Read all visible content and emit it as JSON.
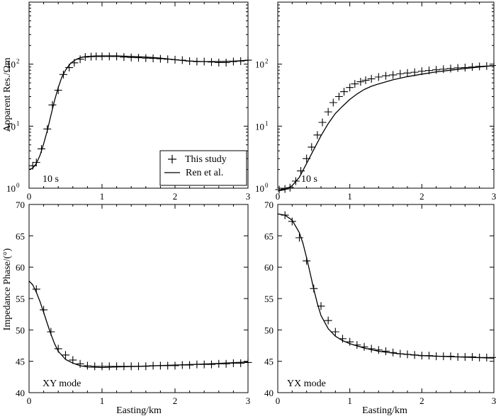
{
  "labels": {
    "y_top": "Apparent Res./Ωm",
    "y_bottom": "Impedance Phase/(°)",
    "x_label": "Easting/km"
  },
  "legend": {
    "measured": "This study",
    "model": "Ren et al."
  },
  "panel_labels": {
    "tl": "10 s",
    "tr": "10 s",
    "bl": "XY mode",
    "br": "YX mode"
  },
  "tick_labels": {
    "x": [
      "0",
      "1",
      "2",
      "3"
    ],
    "log_top_left": [
      {
        "base": "10",
        "exp": "0"
      },
      {
        "base": "10",
        "exp": "1"
      },
      {
        "base": "10",
        "exp": "2"
      }
    ],
    "log_top_right": [
      {
        "base": "10",
        "exp": "0"
      },
      {
        "base": "10",
        "exp": "1"
      },
      {
        "base": "10",
        "exp": "2"
      }
    ],
    "phase": [
      "40",
      "45",
      "50",
      "55",
      "60",
      "65",
      "70"
    ]
  },
  "chart_data": [
    {
      "type": "line",
      "id": "tl",
      "xlim": [
        0,
        3
      ],
      "ylim": [
        1,
        1000
      ],
      "yscale": "log",
      "series": [
        {
          "name": "This study",
          "style": "plus",
          "x": [
            0.05,
            0.1,
            0.17,
            0.25,
            0.32,
            0.4,
            0.47,
            0.55,
            0.62,
            0.7,
            0.77,
            0.85,
            0.92,
            1.0,
            1.1,
            1.2,
            1.3,
            1.4,
            1.5,
            1.6,
            1.7,
            1.8,
            1.9,
            2.0,
            2.1,
            2.2,
            2.3,
            2.4,
            2.5,
            2.6,
            2.7,
            2.8,
            2.9,
            3.0
          ],
          "y": [
            2.3,
            2.6,
            4.3,
            9,
            22,
            38,
            68,
            88,
            105,
            120,
            130,
            132,
            133,
            133,
            133,
            133,
            130,
            128,
            127,
            125,
            124,
            122,
            120,
            118,
            116,
            112,
            110,
            110,
            108,
            106,
            106,
            110,
            112,
            116
          ]
        },
        {
          "name": "Ren et al.",
          "style": "line",
          "x": [
            0,
            0.05,
            0.1,
            0.15,
            0.2,
            0.25,
            0.3,
            0.35,
            0.4,
            0.45,
            0.5,
            0.55,
            0.6,
            0.65,
            0.7,
            0.75,
            0.8,
            0.9,
            1.0,
            1.2,
            1.4,
            1.6,
            1.8,
            2.0,
            2.2,
            2.4,
            2.6,
            2.8,
            3.0
          ],
          "y": [
            2.0,
            2.1,
            2.5,
            3.4,
            5.2,
            8.5,
            15,
            26,
            42,
            62,
            80,
            97,
            110,
            120,
            127,
            131,
            133,
            135,
            136,
            136,
            133,
            130,
            125,
            118,
            112,
            110,
            110,
            112,
            115
          ]
        }
      ]
    },
    {
      "type": "line",
      "id": "tr",
      "xlim": [
        0,
        3
      ],
      "ylim": [
        1,
        1000
      ],
      "yscale": "log",
      "series": [
        {
          "name": "This study",
          "style": "plus",
          "x": [
            0.02,
            0.1,
            0.17,
            0.25,
            0.32,
            0.4,
            0.47,
            0.55,
            0.62,
            0.7,
            0.77,
            0.85,
            0.92,
            1.0,
            1.07,
            1.15,
            1.22,
            1.3,
            1.4,
            1.5,
            1.6,
            1.7,
            1.8,
            1.9,
            2.0,
            2.1,
            2.2,
            2.3,
            2.4,
            2.5,
            2.6,
            2.7,
            2.8,
            2.9,
            3.0
          ],
          "y": [
            0.95,
            0.97,
            1.02,
            1.3,
            1.9,
            3.0,
            4.6,
            7.2,
            11.5,
            17,
            24,
            30,
            36,
            42,
            48,
            52,
            55,
            58,
            62,
            65,
            67,
            70,
            72,
            74,
            77,
            79,
            81,
            83,
            85,
            87,
            88,
            90,
            92,
            93,
            95
          ]
        },
        {
          "name": "Ren et al.",
          "style": "line",
          "x": [
            0,
            0.1,
            0.2,
            0.3,
            0.4,
            0.5,
            0.6,
            0.7,
            0.8,
            0.9,
            1.0,
            1.1,
            1.2,
            1.3,
            1.4,
            1.6,
            1.8,
            2.0,
            2.2,
            2.4,
            2.6,
            2.8,
            3.0
          ],
          "y": [
            0.9,
            0.95,
            1.1,
            1.5,
            2.5,
            4.2,
            7,
            11,
            16,
            21,
            27,
            33,
            39,
            44,
            48,
            56,
            63,
            69,
            75,
            80,
            85,
            90,
            95
          ]
        }
      ]
    },
    {
      "type": "line",
      "id": "bl",
      "xlim": [
        0,
        3
      ],
      "ylim": [
        40,
        70
      ],
      "series": [
        {
          "name": "This study",
          "style": "plus",
          "x": [
            0.1,
            0.2,
            0.3,
            0.4,
            0.5,
            0.6,
            0.7,
            0.8,
            0.9,
            1.0,
            1.1,
            1.2,
            1.3,
            1.4,
            1.5,
            1.6,
            1.7,
            1.8,
            1.9,
            2.0,
            2.1,
            2.2,
            2.3,
            2.4,
            2.5,
            2.6,
            2.7,
            2.8,
            2.9,
            3.0
          ],
          "y": [
            56.5,
            53.2,
            49.7,
            47.0,
            46.0,
            45.2,
            44.6,
            44.3,
            44.2,
            44.2,
            44.2,
            44.2,
            44.2,
            44.2,
            44.2,
            44.2,
            44.3,
            44.3,
            44.3,
            44.3,
            44.4,
            44.4,
            44.5,
            44.5,
            44.5,
            44.6,
            44.6,
            44.7,
            44.7,
            44.8
          ]
        },
        {
          "name": "Ren et al.",
          "style": "line",
          "x": [
            0,
            0.05,
            0.1,
            0.15,
            0.2,
            0.25,
            0.3,
            0.35,
            0.4,
            0.5,
            0.6,
            0.7,
            0.8,
            1.0,
            1.2,
            1.5,
            2.0,
            2.5,
            3.0
          ],
          "y": [
            57.8,
            57.2,
            56.0,
            54.5,
            52.8,
            51.0,
            49.3,
            47.8,
            46.6,
            45.3,
            44.7,
            44.3,
            44.1,
            44.0,
            44.1,
            44.2,
            44.4,
            44.6,
            44.9
          ]
        }
      ]
    },
    {
      "type": "line",
      "id": "br",
      "xlim": [
        0,
        3
      ],
      "ylim": [
        40,
        70
      ],
      "series": [
        {
          "name": "This study",
          "style": "plus",
          "x": [
            0.1,
            0.2,
            0.3,
            0.4,
            0.5,
            0.6,
            0.7,
            0.8,
            0.9,
            1.0,
            1.1,
            1.2,
            1.3,
            1.4,
            1.5,
            1.6,
            1.7,
            1.8,
            1.9,
            2.0,
            2.1,
            2.2,
            2.3,
            2.4,
            2.5,
            2.6,
            2.7,
            2.8,
            2.9,
            3.0
          ],
          "y": [
            68.3,
            67.3,
            64.7,
            61.0,
            56.6,
            53.8,
            51.5,
            49.7,
            48.6,
            48.1,
            47.6,
            47.3,
            47.0,
            46.8,
            46.6,
            46.4,
            46.2,
            46.1,
            46.0,
            45.9,
            45.9,
            45.8,
            45.8,
            45.8,
            45.7,
            45.7,
            45.7,
            45.6,
            45.6,
            45.6
          ]
        },
        {
          "name": "Ren et al.",
          "style": "line",
          "x": [
            0,
            0.1,
            0.2,
            0.3,
            0.35,
            0.4,
            0.45,
            0.5,
            0.55,
            0.6,
            0.7,
            0.8,
            0.9,
            1.0,
            1.2,
            1.4,
            1.6,
            1.8,
            2.0,
            2.5,
            3.0
          ],
          "y": [
            68.5,
            68.3,
            67.5,
            65.5,
            63.8,
            61.5,
            59.0,
            56.5,
            54.2,
            52.3,
            50.2,
            49.0,
            48.3,
            47.8,
            47.1,
            46.6,
            46.3,
            46.1,
            45.9,
            45.7,
            45.5
          ]
        }
      ]
    }
  ]
}
